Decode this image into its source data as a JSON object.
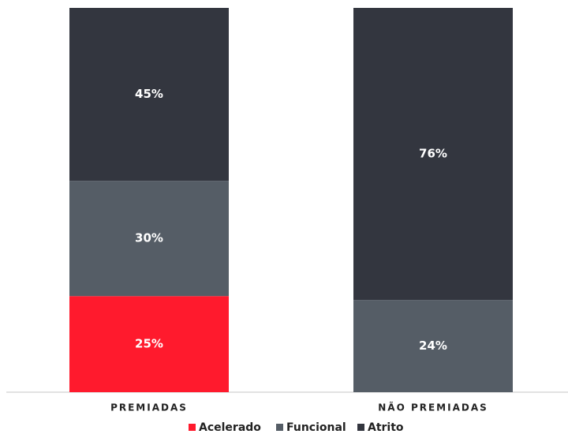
{
  "chart_data": {
    "type": "stacked_bar",
    "categories": [
      "PREMIADAS",
      "NÃO PREMIADAS"
    ],
    "series": [
      {
        "name": "Acelerado",
        "color": "#ff1a2d",
        "values": [
          25,
          null
        ],
        "value_labels": [
          "25%",
          null
        ]
      },
      {
        "name": "Funcional",
        "color": "#555d66",
        "values": [
          30,
          24
        ],
        "value_labels": [
          "30%",
          "24%"
        ]
      },
      {
        "name": "Atrito",
        "color": "#33363f",
        "values": [
          45,
          76
        ],
        "value_labels": [
          "45%",
          "76%"
        ]
      }
    ],
    "legend": "bottom"
  }
}
